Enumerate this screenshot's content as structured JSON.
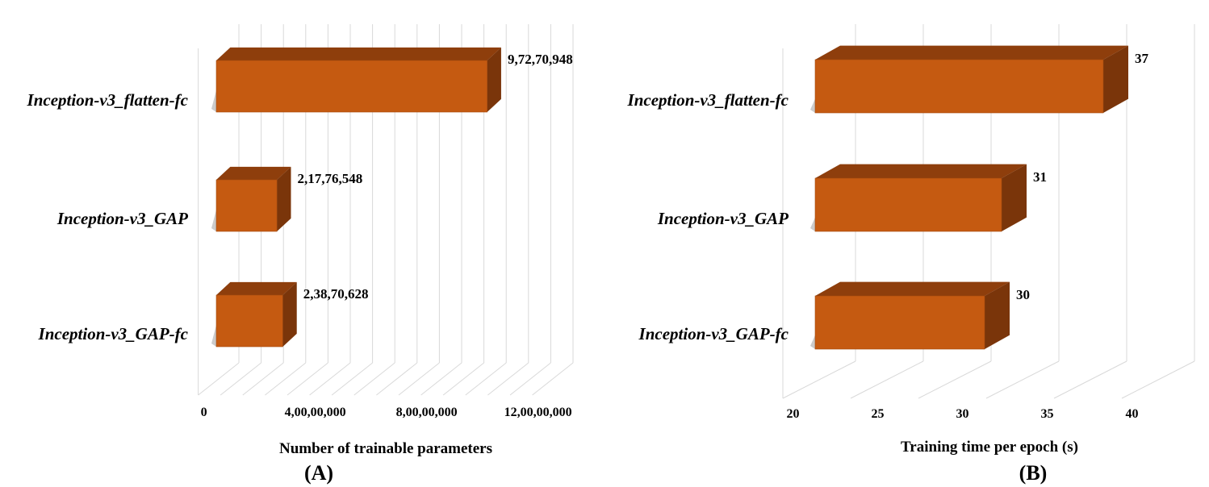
{
  "colors": {
    "bar_front": "#c55a11",
    "bar_top": "#8e3e0c",
    "bar_side": "#7a350a",
    "grid": "#d9d9d9"
  },
  "chart_data": [
    {
      "type": "bar",
      "orientation": "horizontal",
      "panel_label": "(A)",
      "xlabel": "Number of trainable parameters",
      "categories": [
        "Inception-v3_flatten-fc",
        "Inception-v3_GAP",
        "Inception-v3_GAP-fc"
      ],
      "values": [
        97270948,
        21776548,
        23870628
      ],
      "value_labels": [
        "9,72,70,948",
        "2,17,76,548",
        "2,38,70,628"
      ],
      "xlim": [
        0,
        120000000
      ],
      "xticks": [
        0,
        40000000,
        80000000,
        120000000
      ],
      "xtick_labels": [
        "0",
        "4,00,00,000",
        "8,00,00,000",
        "12,00,00,000"
      ],
      "grid": true
    },
    {
      "type": "bar",
      "orientation": "horizontal",
      "panel_label": "(B)",
      "xlabel": "Training time per epoch (s)",
      "categories": [
        "Inception-v3_flatten-fc",
        "Inception-v3_GAP",
        "Inception-v3_GAP-fc"
      ],
      "values": [
        37,
        31,
        30
      ],
      "value_labels": [
        "37",
        "31",
        "30"
      ],
      "xlim": [
        20,
        40
      ],
      "xticks": [
        20,
        25,
        30,
        35,
        40
      ],
      "xtick_labels": [
        "20",
        "25",
        "30",
        "35",
        "40"
      ],
      "grid": true
    }
  ]
}
